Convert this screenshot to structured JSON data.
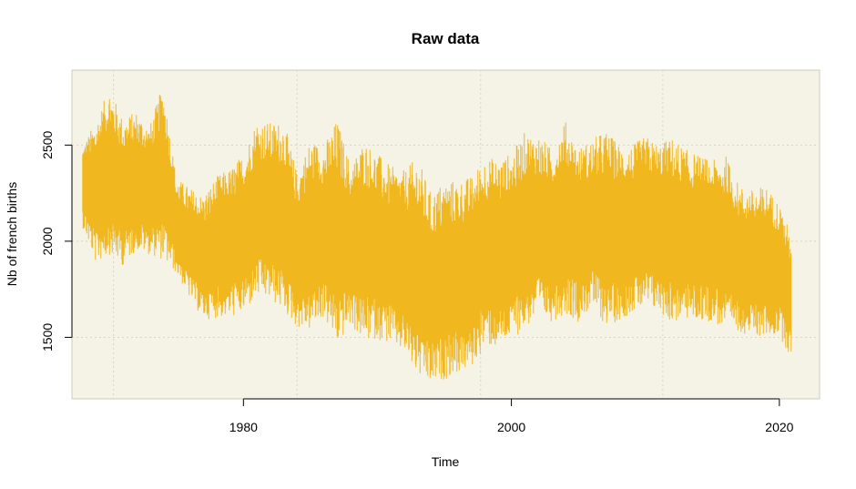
{
  "chart_data": {
    "type": "line",
    "title": "Raw data",
    "xlabel": "Time",
    "ylabel": "Nb of french births",
    "x_ticks": [
      1980,
      2000,
      2020
    ],
    "y_ticks": [
      1500,
      2000,
      2500
    ],
    "xlim": [
      1967.2,
      2023.0
    ],
    "ylim": [
      1180,
      2890
    ],
    "grid": true,
    "legend": "none",
    "series": [
      {
        "color": "#F0B81E",
        "envelope": {
          "x": [
            1968.0,
            1969.0,
            1970.0,
            1971.0,
            1972.0,
            1973.0,
            1974.0,
            1975.0,
            1976.0,
            1977.0,
            1978.0,
            1979.0,
            1980.0,
            1981.0,
            1982.0,
            1983.0,
            1984.0,
            1985.0,
            1986.0,
            1987.0,
            1988.0,
            1989.0,
            1990.0,
            1991.0,
            1992.0,
            1993.0,
            1994.0,
            1995.0,
            1996.0,
            1997.0,
            1998.0,
            1999.0,
            2000.0,
            2001.0,
            2002.0,
            2003.0,
            2004.0,
            2005.0,
            2006.0,
            2007.0,
            2008.0,
            2009.0,
            2010.0,
            2011.0,
            2012.0,
            2013.0,
            2014.0,
            2015.0,
            2016.0,
            2017.0,
            2018.0,
            2019.0,
            2020.0,
            2020.9
          ],
          "upper": [
            2500,
            2630,
            2800,
            2640,
            2680,
            2600,
            2820,
            2330,
            2280,
            2240,
            2340,
            2380,
            2460,
            2640,
            2620,
            2630,
            2360,
            2530,
            2500,
            2640,
            2400,
            2530,
            2460,
            2390,
            2370,
            2440,
            2250,
            2320,
            2320,
            2340,
            2440,
            2430,
            2460,
            2570,
            2560,
            2480,
            2630,
            2490,
            2530,
            2580,
            2510,
            2500,
            2550,
            2510,
            2540,
            2480,
            2450,
            2420,
            2450,
            2290,
            2270,
            2290,
            2200,
            2030
          ],
          "lower": [
            2070,
            1880,
            1930,
            1870,
            1950,
            1930,
            1900,
            1830,
            1700,
            1590,
            1600,
            1600,
            1620,
            1700,
            1690,
            1630,
            1550,
            1530,
            1600,
            1450,
            1560,
            1470,
            1490,
            1460,
            1410,
            1290,
            1240,
            1280,
            1310,
            1330,
            1450,
            1440,
            1490,
            1540,
            1600,
            1580,
            1620,
            1580,
            1650,
            1560,
            1580,
            1630,
            1640,
            1630,
            1570,
            1590,
            1580,
            1580,
            1530,
            1530,
            1500,
            1500,
            1510,
            1380
          ]
        }
      }
    ]
  }
}
